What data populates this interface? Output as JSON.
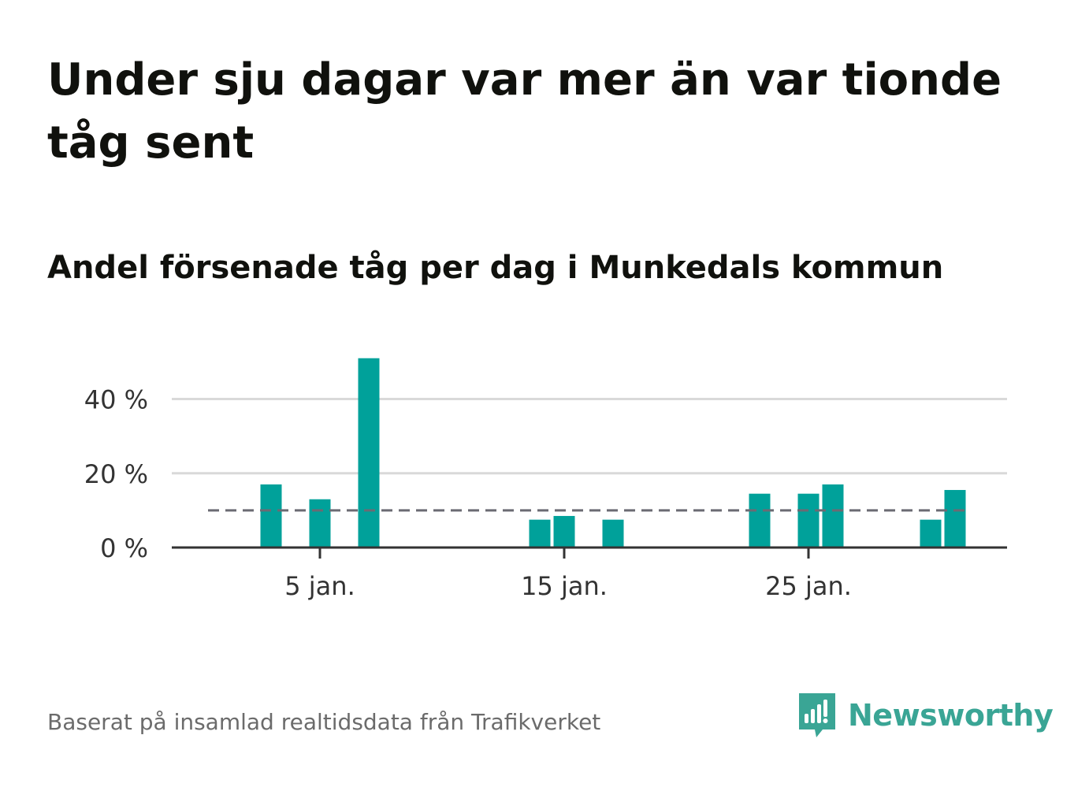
{
  "title": "Under sju dagar var mer än var tionde tåg sent",
  "subtitle": "Andel försenade tåg per dag i Munkedals kommun",
  "source": "Baserat på insamlad realtidsdata från Trafikverket",
  "brand": {
    "name": "Newsworthy",
    "icon": "newsworthy-logo-icon",
    "color": "#3aa595"
  },
  "colors": {
    "bar": "#00a19a",
    "reference_line": "#6b6b73",
    "grid": "#d9d9d9",
    "axis": "#333333"
  },
  "chart_data": {
    "type": "bar",
    "x": [
      1,
      2,
      3,
      4,
      5,
      6,
      7,
      8,
      9,
      10,
      11,
      12,
      13,
      14,
      15,
      16,
      17,
      18,
      19,
      20,
      21,
      22,
      23,
      24,
      25,
      26,
      27,
      28,
      29,
      30,
      31
    ],
    "values": [
      0,
      0,
      17,
      0,
      13,
      0,
      51,
      0,
      0,
      0,
      0,
      0,
      0,
      7.5,
      8.5,
      0,
      7.5,
      0,
      0,
      0,
      0,
      0,
      14.5,
      0,
      14.5,
      17,
      0,
      0,
      0,
      7.5,
      15.5
    ],
    "xticks": [
      5,
      15,
      25
    ],
    "xtick_labels": [
      "5 jan.",
      "15 jan.",
      "25 jan."
    ],
    "yticks": [
      0,
      20,
      40
    ],
    "ytick_labels": [
      "0 %",
      "20 %",
      "40 %"
    ],
    "ylim": [
      0,
      52
    ],
    "xlim": [
      -1,
      33
    ],
    "reference_line": {
      "value": 10,
      "style": "dashed"
    },
    "xlabel": "",
    "ylabel": "",
    "grid": true
  }
}
